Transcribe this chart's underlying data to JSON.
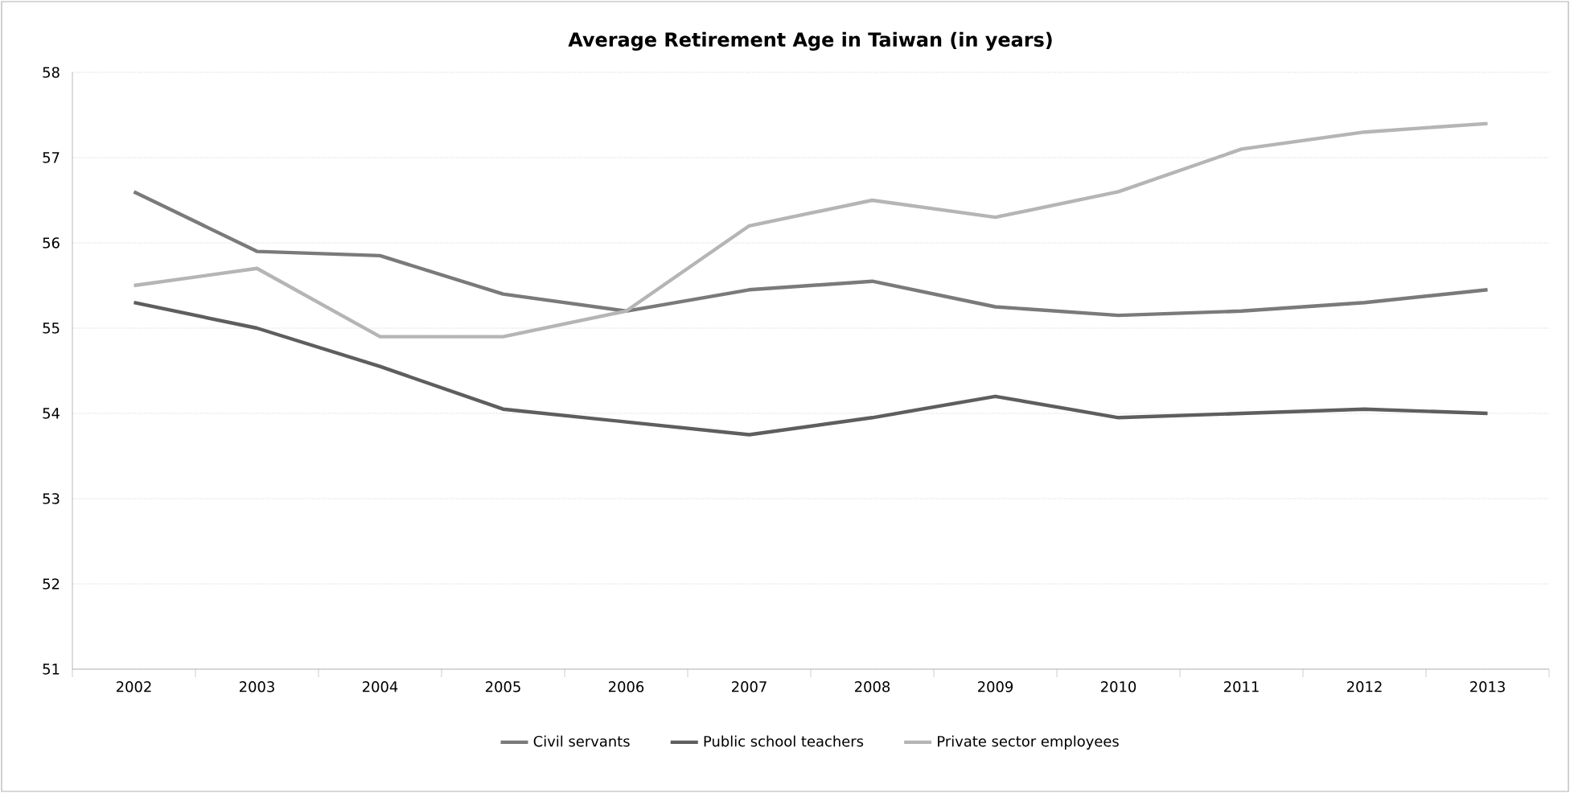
{
  "chart_data": {
    "type": "line",
    "title": "Average Retirement Age in Taiwan (in years)",
    "categories": [
      "2002",
      "2003",
      "2004",
      "2005",
      "2006",
      "2007",
      "2008",
      "2009",
      "2010",
      "2011",
      "2012",
      "2013"
    ],
    "series": [
      {
        "name": "Civil servants",
        "color": "#7a7a7a",
        "values": [
          56.6,
          55.9,
          55.85,
          55.4,
          55.2,
          55.45,
          55.55,
          55.25,
          55.15,
          55.2,
          55.3,
          55.45
        ]
      },
      {
        "name": "Public school teachers",
        "color": "#5e5e5e",
        "values": [
          55.3,
          55.0,
          54.55,
          54.05,
          53.9,
          53.75,
          53.95,
          54.2,
          53.95,
          54.0,
          54.05,
          54.0
        ]
      },
      {
        "name": "Private sector employees",
        "color": "#b5b5b5",
        "values": [
          55.5,
          55.7,
          54.9,
          54.9,
          55.2,
          56.2,
          56.5,
          56.3,
          56.6,
          57.1,
          57.3,
          57.4
        ]
      }
    ],
    "ylim": [
      51,
      58
    ],
    "yticks": [
      51,
      52,
      53,
      54,
      55,
      56,
      57,
      58
    ],
    "grid": "y",
    "legend": "bottom",
    "marker": "none",
    "line_style": "solid"
  }
}
